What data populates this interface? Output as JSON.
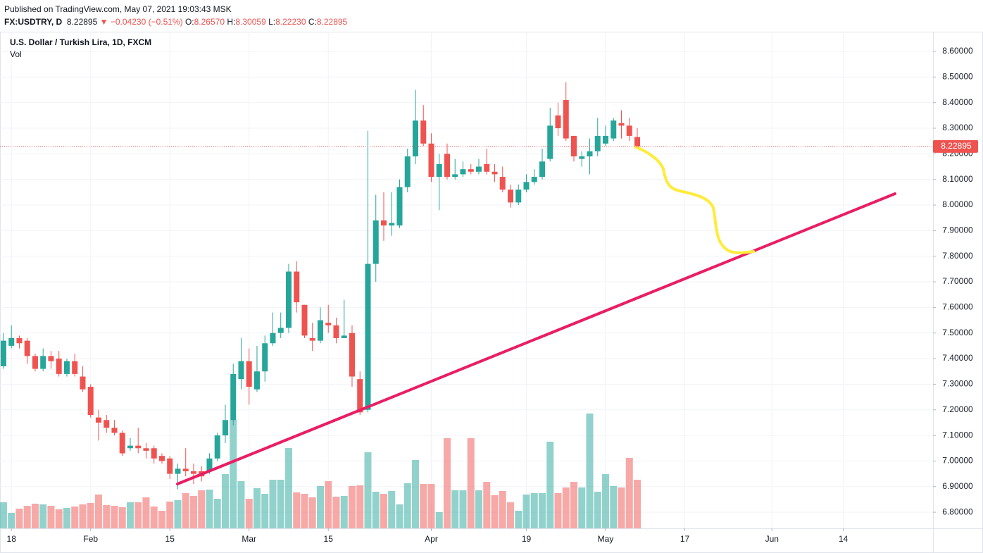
{
  "header": {
    "published": "Published on TradingView.com, May 07, 2021 19:03:43 MSK",
    "symbol": "FX:USDTRY, D",
    "price": "8.22895",
    "change": "▼ −0.04230 (−0.51%)",
    "ohlc": [
      {
        "k": "O:",
        "v": "8.26570"
      },
      {
        "k": "H:",
        "v": "8.30059"
      },
      {
        "k": "L:",
        "v": "8.22230"
      },
      {
        "k": "C:",
        "v": "8.22895"
      }
    ]
  },
  "chart_data": {
    "type": "candlestick",
    "title": "U.S. Dollar / Turkish Lira, 1D, FXCM",
    "volume_label": "Vol",
    "up_color": "#26a69a",
    "down_color": "#ef5350",
    "open": [
      7.37,
      7.45,
      7.48,
      7.47,
      7.41,
      7.36,
      7.41,
      7.4,
      7.34,
      7.39,
      7.33,
      7.29,
      7.17,
      7.16,
      7.13,
      7.11,
      7.05,
      7.06,
      7.05,
      7.05,
      7.02,
      7.01,
      6.95,
      6.97,
      6.96,
      6.96,
      6.96,
      7.01,
      7.1,
      7.16,
      7.32,
      7.39,
      7.28,
      7.35,
      7.46,
      7.5,
      7.52,
      7.74,
      7.61,
      7.48,
      7.47,
      7.54,
      7.53,
      7.48,
      7.5,
      7.32,
      7.2,
      7.77,
      7.94,
      7.92,
      7.92,
      8.07,
      8.19,
      8.33,
      8.24,
      8.11,
      8.2,
      8.11,
      8.12,
      8.14,
      8.13,
      8.16,
      8.13,
      8.11,
      8.06,
      8.01,
      8.06,
      8.09,
      8.11,
      8.18,
      8.35,
      8.41,
      8.27,
      8.18,
      8.19,
      8.21,
      8.24,
      8.26,
      8.32,
      8.31,
      8.2657
    ],
    "high": [
      7.5,
      7.53,
      7.49,
      7.48,
      7.42,
      7.44,
      7.43,
      7.43,
      7.4,
      7.42,
      7.37,
      7.3,
      7.2,
      7.18,
      7.16,
      7.12,
      7.09,
      7.13,
      7.07,
      7.06,
      7.03,
      7.02,
      6.99,
      7.05,
      6.99,
      6.98,
      7.03,
      7.11,
      7.22,
      7.38,
      7.48,
      7.44,
      7.45,
      7.49,
      7.58,
      7.58,
      7.77,
      7.78,
      7.61,
      7.54,
      7.6,
      7.61,
      7.56,
      7.63,
      7.53,
      7.35,
      8.29,
      8.04,
      8.05,
      8.05,
      8.1,
      8.22,
      8.45,
      8.39,
      8.28,
      8.2,
      8.24,
      8.18,
      8.17,
      8.16,
      8.18,
      8.22,
      8.16,
      8.15,
      8.08,
      8.08,
      8.12,
      8.14,
      8.22,
      8.38,
      8.4,
      8.48,
      8.27,
      8.21,
      8.26,
      8.34,
      8.31,
      8.34,
      8.37,
      8.34,
      8.30059
    ],
    "low": [
      7.36,
      7.44,
      7.44,
      7.38,
      7.35,
      7.35,
      7.36,
      7.33,
      7.33,
      7.33,
      7.27,
      7.17,
      7.08,
      7.11,
      7.1,
      7.02,
      7.04,
      7.03,
      7.01,
      6.99,
      6.99,
      6.93,
      6.89,
      6.94,
      6.91,
      6.92,
      6.95,
      7.0,
      7.07,
      7.14,
      7.28,
      7.22,
      7.27,
      7.31,
      7.45,
      7.48,
      7.5,
      7.58,
      7.48,
      7.43,
      7.46,
      7.5,
      7.46,
      7.48,
      7.29,
      7.18,
      7.19,
      7.7,
      7.86,
      7.88,
      7.91,
      8.05,
      8.16,
      8.23,
      8.09,
      7.98,
      8.1,
      8.1,
      8.11,
      8.12,
      8.12,
      8.12,
      8.09,
      8.05,
      7.99,
      8.0,
      8.05,
      8.08,
      8.1,
      8.17,
      8.27,
      8.25,
      8.17,
      8.15,
      8.12,
      8.19,
      8.23,
      8.25,
      8.26,
      8.25,
      8.2223
    ],
    "close": [
      7.47,
      7.48,
      7.46,
      7.41,
      7.36,
      7.41,
      7.39,
      7.34,
      7.39,
      7.34,
      7.28,
      7.18,
      7.15,
      7.13,
      7.11,
      7.03,
      7.06,
      7.05,
      7.04,
      7.01,
      7.0,
      6.95,
      6.97,
      6.96,
      6.95,
      6.94,
      7.01,
      7.1,
      7.16,
      7.34,
      7.39,
      7.29,
      7.35,
      7.46,
      7.5,
      7.52,
      7.74,
      7.62,
      7.49,
      7.47,
      7.55,
      7.53,
      7.48,
      7.49,
      7.33,
      7.19,
      7.77,
      7.94,
      7.92,
      7.93,
      8.07,
      8.19,
      8.33,
      8.24,
      8.11,
      8.16,
      8.11,
      8.12,
      8.14,
      8.13,
      8.15,
      8.13,
      8.12,
      8.06,
      8.01,
      8.06,
      8.09,
      8.11,
      8.17,
      8.31,
      8.3,
      8.26,
      8.19,
      8.19,
      8.21,
      8.27,
      8.27,
      8.33,
      8.31,
      8.27,
      8.22895
    ],
    "volume": [
      37,
      22,
      28,
      32,
      35,
      34,
      32,
      27,
      29,
      31,
      34,
      36,
      48,
      33,
      32,
      30,
      37,
      37,
      44,
      31,
      25,
      38,
      40,
      50,
      46,
      54,
      55,
      42,
      77,
      154,
      67,
      42,
      57,
      49,
      69,
      69,
      114,
      51,
      49,
      44,
      60,
      67,
      45,
      46,
      60,
      61,
      108,
      52,
      49,
      53,
      34,
      64,
      97,
      63,
      63,
      23,
      128,
      54,
      54,
      128,
      54,
      66,
      47,
      53,
      37,
      25,
      48,
      50,
      50,
      123,
      50,
      58,
      66,
      58,
      163,
      52,
      77,
      60,
      58,
      100,
      69
    ],
    "last_price": 8.22895,
    "xlim": [
      -0.44,
      117.33
    ],
    "xticks": [
      {
        "value": 1,
        "label": "18"
      },
      {
        "value": 11,
        "label": "Feb"
      },
      {
        "value": 21,
        "label": "15"
      },
      {
        "value": 31,
        "label": "Mar"
      },
      {
        "value": 41,
        "label": "15"
      },
      {
        "value": 54,
        "label": "Apr"
      },
      {
        "value": 66,
        "label": "19"
      },
      {
        "value": 76,
        "label": "May"
      },
      {
        "value": 86,
        "label": "17"
      },
      {
        "value": 97,
        "label": "Jun"
      },
      {
        "value": 106,
        "label": "14"
      }
    ],
    "ylim": [
      6.737,
      8.677
    ],
    "yticks": [
      {
        "value": 6.8,
        "label": "6.80000"
      },
      {
        "value": 6.9,
        "label": "6.90000"
      },
      {
        "value": 7.0,
        "label": "7.00000"
      },
      {
        "value": 7.1,
        "label": "7.10000"
      },
      {
        "value": 7.2,
        "label": "7.20000"
      },
      {
        "value": 7.3,
        "label": "7.30000"
      },
      {
        "value": 7.4,
        "label": "7.40000"
      },
      {
        "value": 7.5,
        "label": "7.50000"
      },
      {
        "value": 7.6,
        "label": "7.60000"
      },
      {
        "value": 7.7,
        "label": "7.70000"
      },
      {
        "value": 7.8,
        "label": "7.80000"
      },
      {
        "value": 7.9,
        "label": "7.90000"
      },
      {
        "value": 8.0,
        "label": "8.00000"
      },
      {
        "value": 8.1,
        "label": "8.10000"
      },
      {
        "value": 8.2,
        "label": "8.20000"
      },
      {
        "value": 8.3,
        "label": "8.30000"
      },
      {
        "value": 8.4,
        "label": "8.40000"
      },
      {
        "value": 8.5,
        "label": "8.50000"
      },
      {
        "value": 8.6,
        "label": "8.60000"
      }
    ],
    "grid": true
  }
}
